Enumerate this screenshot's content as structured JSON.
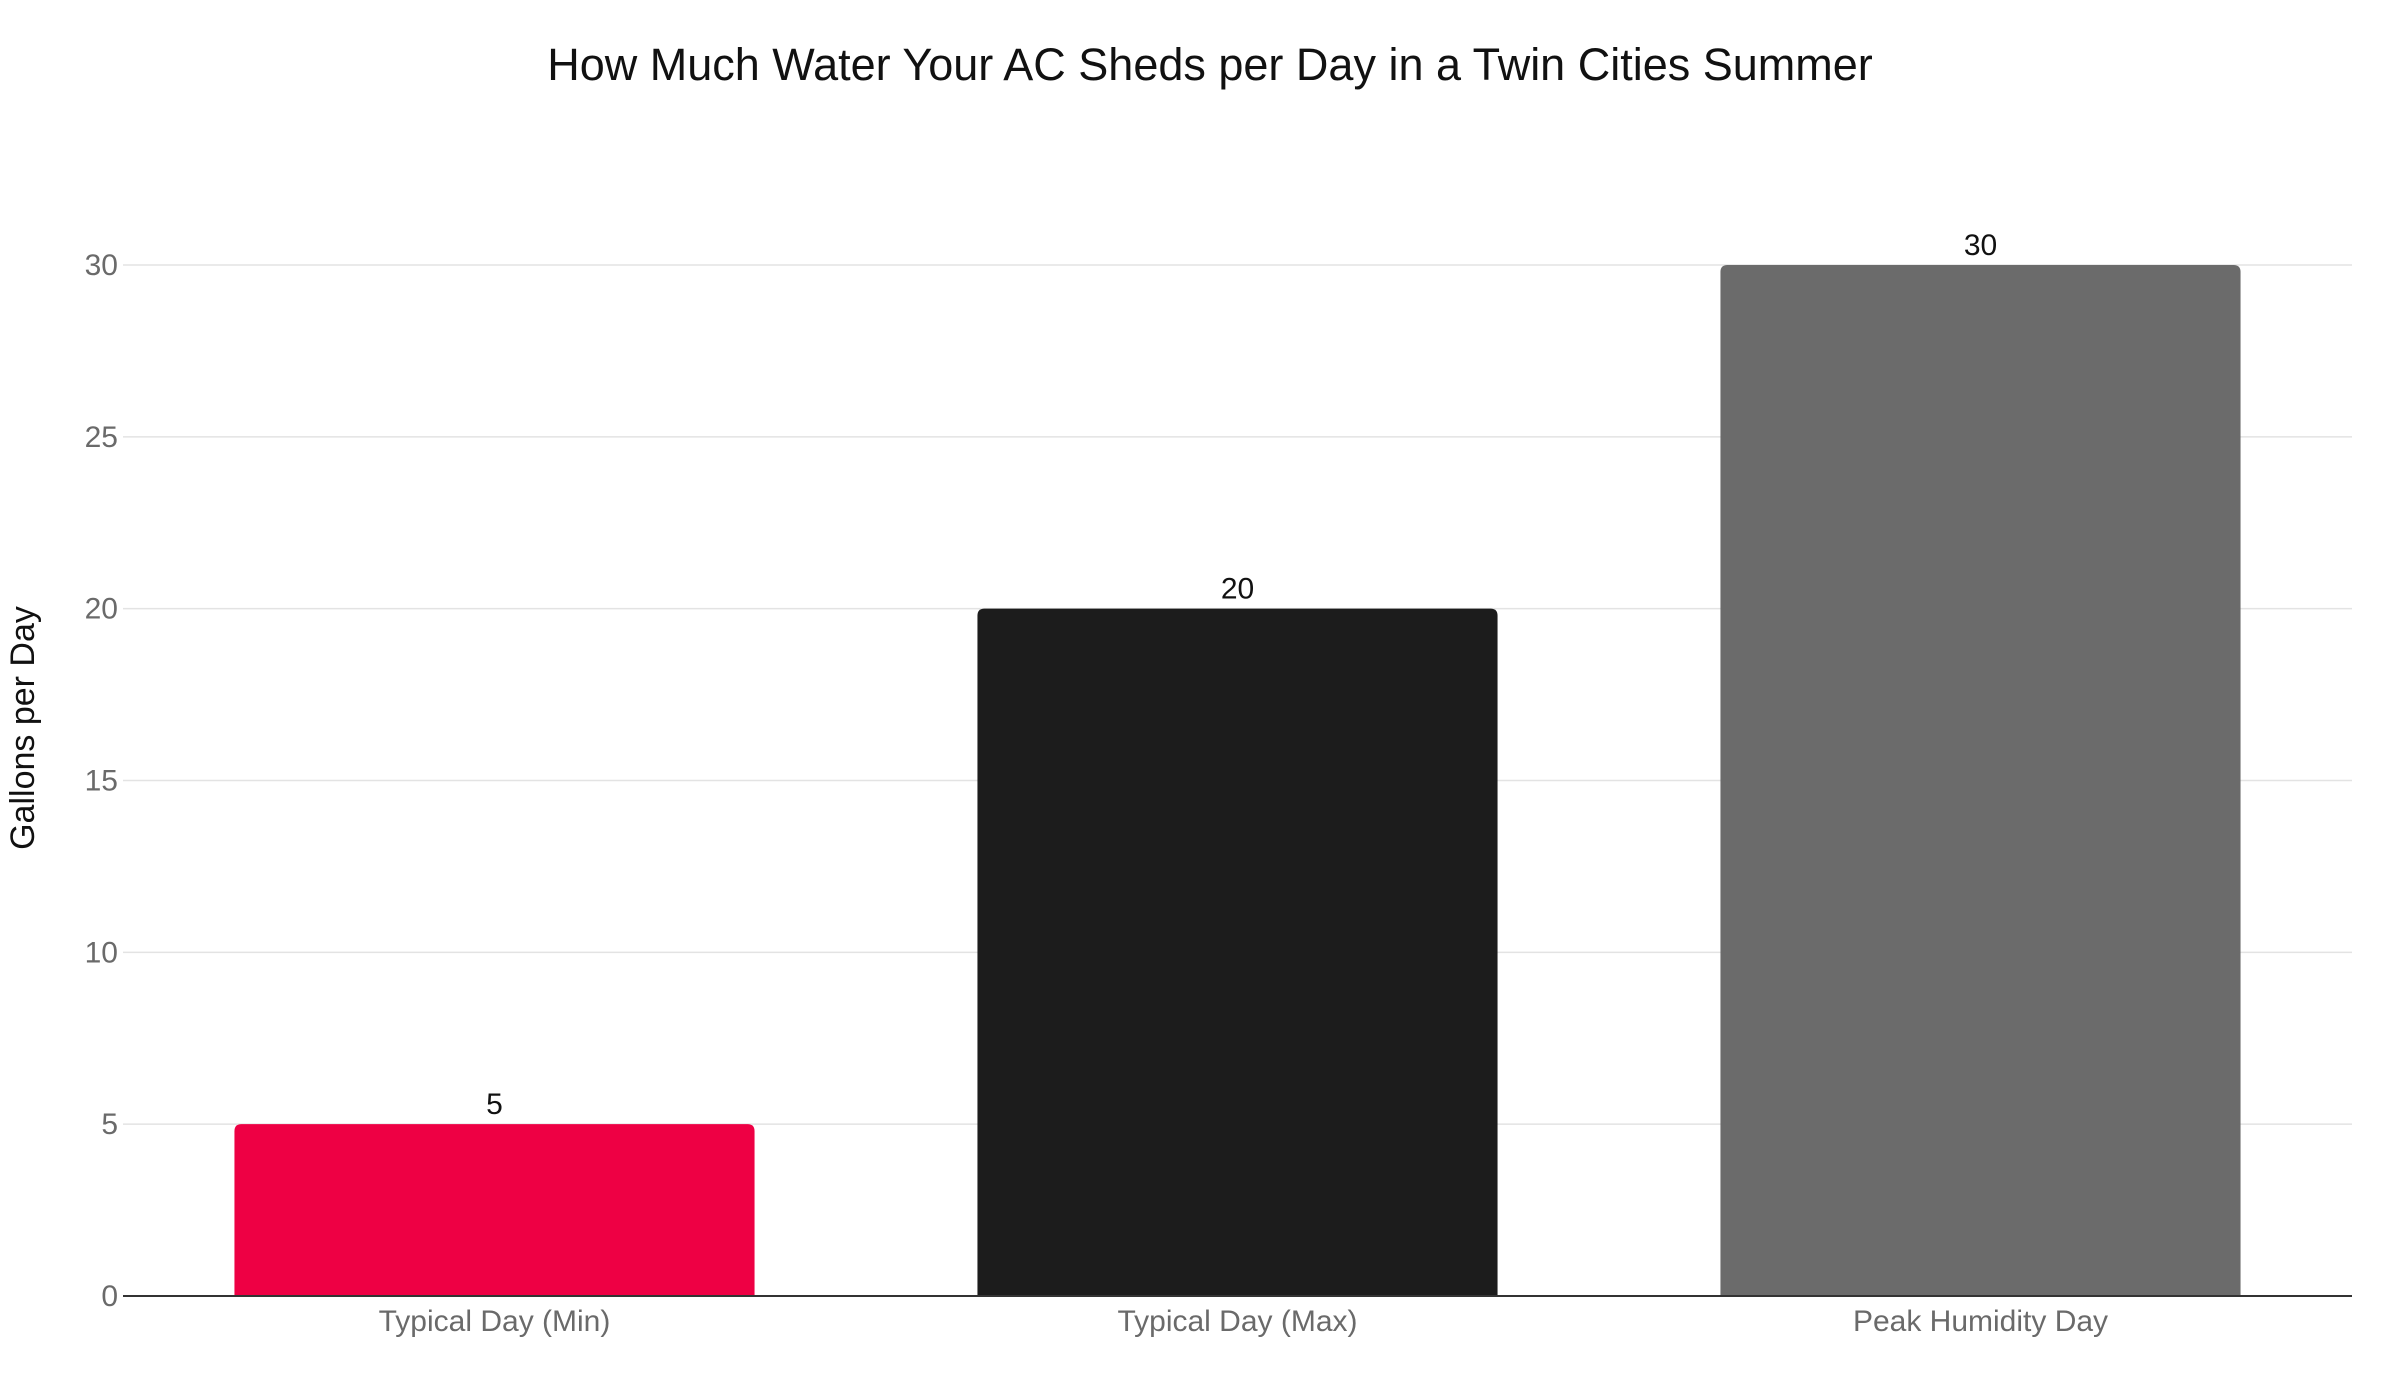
{
  "chart_data": {
    "type": "bar",
    "title": "How Much Water Your AC Sheds per Day in a Twin Cities Summer",
    "xlabel": "",
    "ylabel": "Gallons per Day",
    "categories": [
      "Typical Day (Min)",
      "Typical Day (Max)",
      "Peak Humidity Day"
    ],
    "values": [
      5,
      20,
      30
    ],
    "colors": [
      "#ee0044",
      "#1c1c1c",
      "#6b6b6b"
    ],
    "ylim": [
      0,
      30
    ],
    "yticks": [
      0,
      5,
      10,
      15,
      20,
      25,
      30
    ],
    "grid": true,
    "data_labels": true
  }
}
